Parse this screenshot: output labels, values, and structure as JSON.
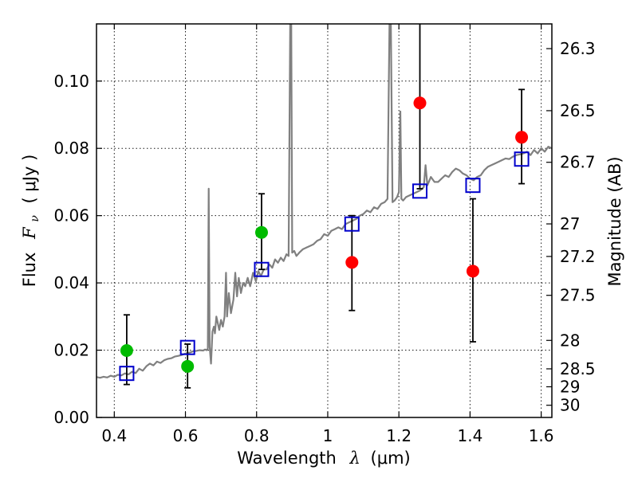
{
  "chart_data": {
    "type": "scatter",
    "xlabel_prefix": "Wavelength",
    "xlabel_symbol": "λ",
    "xlabel_unit": "(μm)",
    "ylabel_prefix": "Flux",
    "ylabel_symbol": "F",
    "ylabel_sub": "ν",
    "ylabel_unit": "( μJy )",
    "y2label": "Magnitude (AB)",
    "xlim": [
      0.35,
      1.63
    ],
    "ylim": [
      0.0,
      0.117
    ],
    "grid": true,
    "x_ticks": [
      {
        "value": 0.4,
        "label": "0.4"
      },
      {
        "value": 0.6,
        "label": "0.6"
      },
      {
        "value": 0.8,
        "label": "0.8"
      },
      {
        "value": 1.0,
        "label": "1"
      },
      {
        "value": 1.2,
        "label": "1.2"
      },
      {
        "value": 1.4,
        "label": "1.4"
      },
      {
        "value": 1.6,
        "label": "1.6"
      }
    ],
    "y_ticks": [
      {
        "value": 0.0,
        "label": "0.00"
      },
      {
        "value": 0.02,
        "label": "0.02"
      },
      {
        "value": 0.04,
        "label": "0.04"
      },
      {
        "value": 0.06,
        "label": "0.06"
      },
      {
        "value": 0.08,
        "label": "0.08"
      },
      {
        "value": 0.1,
        "label": "0.10"
      }
    ],
    "mag_ticks": [
      {
        "mag": 26.3,
        "label": "26.3"
      },
      {
        "mag": 26.5,
        "label": "26.5"
      },
      {
        "mag": 26.7,
        "label": "26.7"
      },
      {
        "mag": 27.0,
        "label": "27"
      },
      {
        "mag": 27.2,
        "label": "27.2"
      },
      {
        "mag": 27.5,
        "label": "27.5"
      },
      {
        "mag": 28.0,
        "label": "28"
      },
      {
        "mag": 28.5,
        "label": "28.5"
      },
      {
        "mag": 29.0,
        "label": "29"
      },
      {
        "mag": 30.0,
        "label": "30"
      }
    ],
    "colors": {
      "green": "#00bb00",
      "red": "#ff0000",
      "model_square": "#0000cc",
      "spectrum": "#808080"
    },
    "green_points": [
      {
        "x": 0.435,
        "y": 0.0199,
        "yerr_low": 0.0098,
        "yerr_high": 0.0305
      },
      {
        "x": 0.606,
        "y": 0.0152,
        "yerr_low": 0.0088,
        "yerr_high": 0.0218
      },
      {
        "x": 0.814,
        "y": 0.055,
        "yerr_low": 0.044,
        "yerr_high": 0.0665
      }
    ],
    "red_points": [
      {
        "x": 1.068,
        "y": 0.0461,
        "yerr_low": 0.0318,
        "yerr_high": 0.06
      },
      {
        "x": 1.259,
        "y": 0.0935,
        "yerr_low": 0.068,
        "yerr_high": 0.117
      },
      {
        "x": 1.408,
        "y": 0.0435,
        "yerr_low": 0.0225,
        "yerr_high": 0.065
      },
      {
        "x": 1.545,
        "y": 0.0833,
        "yerr_low": 0.0695,
        "yerr_high": 0.0975
      }
    ],
    "model_points": [
      {
        "x": 0.435,
        "y": 0.0131
      },
      {
        "x": 0.606,
        "y": 0.0208
      },
      {
        "x": 0.814,
        "y": 0.044
      },
      {
        "x": 1.068,
        "y": 0.0575
      },
      {
        "x": 1.259,
        "y": 0.0673
      },
      {
        "x": 1.408,
        "y": 0.069
      },
      {
        "x": 1.545,
        "y": 0.0768
      }
    ],
    "spectrum": [
      [
        0.35,
        0.012
      ],
      [
        0.36,
        0.0118
      ],
      [
        0.37,
        0.0121
      ],
      [
        0.38,
        0.0119
      ],
      [
        0.39,
        0.0124
      ],
      [
        0.4,
        0.0121
      ],
      [
        0.41,
        0.0127
      ],
      [
        0.42,
        0.0125
      ],
      [
        0.43,
        0.0131
      ],
      [
        0.44,
        0.0128
      ],
      [
        0.45,
        0.0136
      ],
      [
        0.46,
        0.0132
      ],
      [
        0.47,
        0.0145
      ],
      [
        0.48,
        0.0139
      ],
      [
        0.49,
        0.0152
      ],
      [
        0.5,
        0.016
      ],
      [
        0.51,
        0.0155
      ],
      [
        0.52,
        0.0166
      ],
      [
        0.53,
        0.0162
      ],
      [
        0.54,
        0.017
      ],
      [
        0.55,
        0.0174
      ],
      [
        0.56,
        0.0176
      ],
      [
        0.57,
        0.0181
      ],
      [
        0.58,
        0.0183
      ],
      [
        0.59,
        0.0186
      ],
      [
        0.6,
        0.019
      ],
      [
        0.61,
        0.0192
      ],
      [
        0.62,
        0.0196
      ],
      [
        0.63,
        0.0198
      ],
      [
        0.64,
        0.02
      ],
      [
        0.65,
        0.0199
      ],
      [
        0.655,
        0.0202
      ],
      [
        0.66,
        0.02
      ],
      [
        0.663,
        0.0205
      ],
      [
        0.6655,
        0.068
      ],
      [
        0.668,
        0.021
      ],
      [
        0.672,
        0.016
      ],
      [
        0.676,
        0.0255
      ],
      [
        0.68,
        0.027
      ],
      [
        0.683,
        0.025
      ],
      [
        0.687,
        0.03
      ],
      [
        0.69,
        0.0285
      ],
      [
        0.695,
        0.026
      ],
      [
        0.7,
        0.029
      ],
      [
        0.705,
        0.027
      ],
      [
        0.71,
        0.03
      ],
      [
        0.714,
        0.043
      ],
      [
        0.717,
        0.03
      ],
      [
        0.722,
        0.037
      ],
      [
        0.728,
        0.031
      ],
      [
        0.735,
        0.035
      ],
      [
        0.74,
        0.043
      ],
      [
        0.745,
        0.036
      ],
      [
        0.75,
        0.0415
      ],
      [
        0.756,
        0.037
      ],
      [
        0.762,
        0.04
      ],
      [
        0.768,
        0.039
      ],
      [
        0.775,
        0.0415
      ],
      [
        0.782,
        0.039
      ],
      [
        0.79,
        0.043
      ],
      [
        0.798,
        0.0405
      ],
      [
        0.805,
        0.0435
      ],
      [
        0.812,
        0.042
      ],
      [
        0.82,
        0.044
      ],
      [
        0.828,
        0.044
      ],
      [
        0.836,
        0.0455
      ],
      [
        0.844,
        0.0445
      ],
      [
        0.852,
        0.047
      ],
      [
        0.86,
        0.046
      ],
      [
        0.868,
        0.0475
      ],
      [
        0.876,
        0.0465
      ],
      [
        0.884,
        0.0485
      ],
      [
        0.89,
        0.048
      ],
      [
        0.8945,
        0.117
      ],
      [
        0.8975,
        0.117
      ],
      [
        0.9,
        0.049
      ],
      [
        0.906,
        0.0495
      ],
      [
        0.912,
        0.048
      ],
      [
        0.92,
        0.049
      ],
      [
        0.93,
        0.05
      ],
      [
        0.94,
        0.0505
      ],
      [
        0.95,
        0.051
      ],
      [
        0.96,
        0.0515
      ],
      [
        0.97,
        0.0525
      ],
      [
        0.98,
        0.053
      ],
      [
        0.99,
        0.0545
      ],
      [
        1.0,
        0.054
      ],
      [
        1.01,
        0.0555
      ],
      [
        1.02,
        0.056
      ],
      [
        1.03,
        0.0565
      ],
      [
        1.04,
        0.056
      ],
      [
        1.05,
        0.0575
      ],
      [
        1.06,
        0.058
      ],
      [
        1.07,
        0.0585
      ],
      [
        1.08,
        0.059
      ],
      [
        1.09,
        0.06
      ],
      [
        1.1,
        0.0605
      ],
      [
        1.11,
        0.0615
      ],
      [
        1.12,
        0.061
      ],
      [
        1.13,
        0.0625
      ],
      [
        1.14,
        0.062
      ],
      [
        1.15,
        0.0635
      ],
      [
        1.16,
        0.064
      ],
      [
        1.168,
        0.065
      ],
      [
        1.1735,
        0.117
      ],
      [
        1.1775,
        0.117
      ],
      [
        1.182,
        0.064
      ],
      [
        1.188,
        0.0645
      ],
      [
        1.195,
        0.0655
      ],
      [
        1.2,
        0.067
      ],
      [
        1.204,
        0.091
      ],
      [
        1.207,
        0.065
      ],
      [
        1.212,
        0.0645
      ],
      [
        1.22,
        0.0655
      ],
      [
        1.23,
        0.066
      ],
      [
        1.24,
        0.0665
      ],
      [
        1.25,
        0.067
      ],
      [
        1.26,
        0.0675
      ],
      [
        1.27,
        0.0685
      ],
      [
        1.275,
        0.075
      ],
      [
        1.28,
        0.069
      ],
      [
        1.29,
        0.0715
      ],
      [
        1.3,
        0.07
      ],
      [
        1.31,
        0.07
      ],
      [
        1.32,
        0.071
      ],
      [
        1.33,
        0.072
      ],
      [
        1.34,
        0.0715
      ],
      [
        1.35,
        0.073
      ],
      [
        1.36,
        0.074
      ],
      [
        1.37,
        0.0735
      ],
      [
        1.38,
        0.0725
      ],
      [
        1.39,
        0.072
      ],
      [
        1.4,
        0.071
      ],
      [
        1.41,
        0.0705
      ],
      [
        1.42,
        0.0715
      ],
      [
        1.43,
        0.072
      ],
      [
        1.44,
        0.0735
      ],
      [
        1.45,
        0.0745
      ],
      [
        1.46,
        0.075
      ],
      [
        1.47,
        0.0755
      ],
      [
        1.48,
        0.076
      ],
      [
        1.49,
        0.0765
      ],
      [
        1.5,
        0.077
      ],
      [
        1.51,
        0.0768
      ],
      [
        1.52,
        0.0775
      ],
      [
        1.53,
        0.078
      ],
      [
        1.54,
        0.0782
      ],
      [
        1.55,
        0.0785
      ],
      [
        1.56,
        0.079
      ],
      [
        1.57,
        0.078
      ],
      [
        1.58,
        0.0795
      ],
      [
        1.59,
        0.0785
      ],
      [
        1.6,
        0.08
      ],
      [
        1.61,
        0.079
      ],
      [
        1.62,
        0.0805
      ],
      [
        1.63,
        0.08
      ]
    ]
  }
}
